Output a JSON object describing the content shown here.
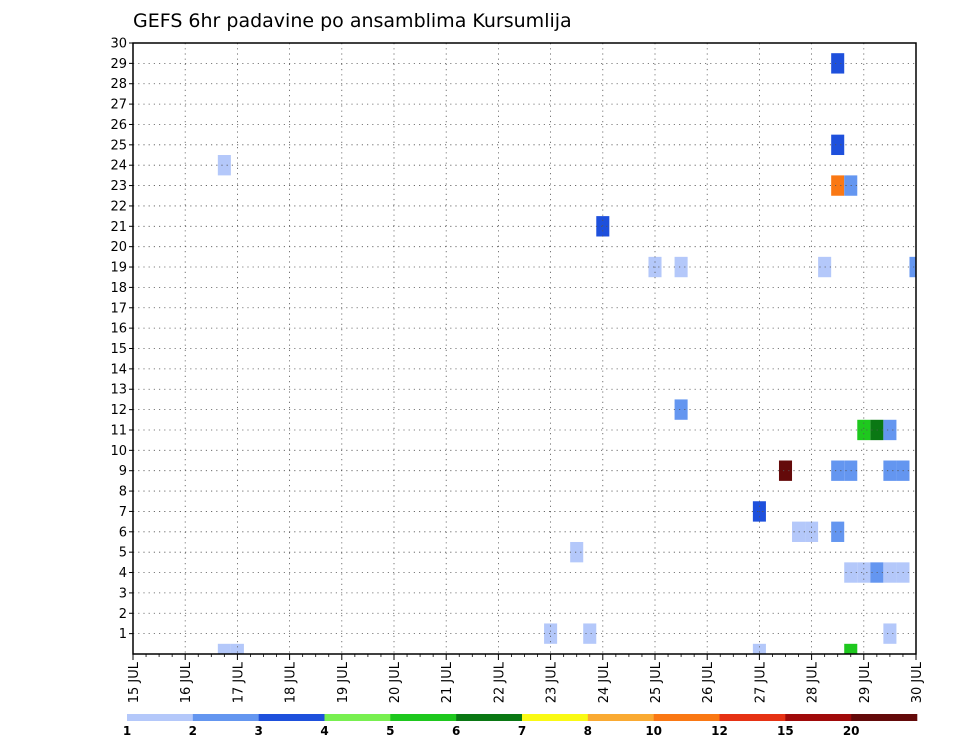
{
  "chart_data": {
    "type": "heatmap",
    "title": "GEFS 6hr padavine po ansamblima Kursumlija",
    "xlabel": "",
    "ylabel": "",
    "x_ticks": [
      "15 JUL",
      "16 JUL",
      "17 JUL",
      "18 JUL",
      "19 JUL",
      "20 JUL",
      "21 JUL",
      "22 JUL",
      "23 JUL",
      "24 JUL",
      "25 JUL",
      "26 JUL",
      "27 JUL",
      "28 JUL",
      "29 JUL",
      "30 JUL"
    ],
    "y_ticks": [
      1,
      2,
      3,
      4,
      5,
      6,
      7,
      8,
      9,
      10,
      11,
      12,
      13,
      14,
      15,
      16,
      17,
      18,
      19,
      20,
      21,
      22,
      23,
      24,
      25,
      26,
      27,
      28,
      29,
      30
    ],
    "xlim": [
      0,
      60
    ],
    "ylim": [
      0,
      30
    ],
    "grid": true,
    "x_units": "6-hour steps from 15 JUL 00Z",
    "colorbar": {
      "labels": [
        "1",
        "2",
        "3",
        "4",
        "5",
        "6",
        "7",
        "8",
        "10",
        "12",
        "15",
        "20"
      ],
      "colors": [
        "#b4c8fa",
        "#6496f0",
        "#1e50dc",
        "#78f050",
        "#1ec81e",
        "#0a7814",
        "#fafa14",
        "#faaa32",
        "#fa7814",
        "#e63214",
        "#a00a0a",
        "#640a0a"
      ]
    },
    "cells": [
      {
        "member": 0,
        "step": 7,
        "value": 1.5
      },
      {
        "member": 0,
        "step": 8,
        "value": 1.5
      },
      {
        "member": 0,
        "step": 48,
        "value": 1.5
      },
      {
        "member": 0,
        "step": 55,
        "value": 5.5
      },
      {
        "member": 1,
        "step": 32,
        "value": 1.5
      },
      {
        "member": 1,
        "step": 35,
        "value": 1.5
      },
      {
        "member": 1,
        "step": 58,
        "value": 1.5
      },
      {
        "member": 4,
        "step": 55,
        "value": 1.5
      },
      {
        "member": 4,
        "step": 56,
        "value": 1.5
      },
      {
        "member": 4,
        "step": 57,
        "value": 2.5
      },
      {
        "member": 4,
        "step": 58,
        "value": 1.5
      },
      {
        "member": 4,
        "step": 59,
        "value": 1.5
      },
      {
        "member": 5,
        "step": 34,
        "value": 1.5
      },
      {
        "member": 6,
        "step": 51,
        "value": 1.5
      },
      {
        "member": 6,
        "step": 52,
        "value": 1.5
      },
      {
        "member": 6,
        "step": 54,
        "value": 2.5
      },
      {
        "member": 7,
        "step": 48,
        "value": 3.5
      },
      {
        "member": 9,
        "step": 50,
        "value": 25
      },
      {
        "member": 9,
        "step": 54,
        "value": 2.5
      },
      {
        "member": 9,
        "step": 55,
        "value": 2.5
      },
      {
        "member": 9,
        "step": 58,
        "value": 2.5
      },
      {
        "member": 9,
        "step": 59,
        "value": 2.5
      },
      {
        "member": 11,
        "step": 56,
        "value": 5.5
      },
      {
        "member": 11,
        "step": 57,
        "value": 6.5
      },
      {
        "member": 11,
        "step": 58,
        "value": 2.5
      },
      {
        "member": 12,
        "step": 42,
        "value": 2.5
      },
      {
        "member": 19,
        "step": 40,
        "value": 1.5
      },
      {
        "member": 19,
        "step": 42,
        "value": 1.5
      },
      {
        "member": 19,
        "step": 53,
        "value": 1.5
      },
      {
        "member": 19,
        "step": 60,
        "value": 2.5
      },
      {
        "member": 21,
        "step": 36,
        "value": 3.5
      },
      {
        "member": 23,
        "step": 54,
        "value": 11
      },
      {
        "member": 23,
        "step": 55,
        "value": 2.5
      },
      {
        "member": 24,
        "step": 7,
        "value": 1.5
      },
      {
        "member": 25,
        "step": 54,
        "value": 3.5
      },
      {
        "member": 29,
        "step": 54,
        "value": 3.5
      }
    ]
  }
}
